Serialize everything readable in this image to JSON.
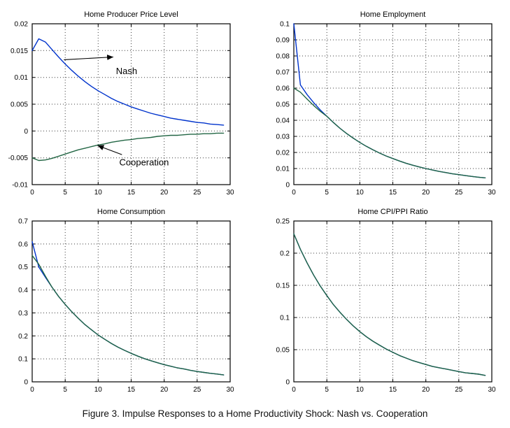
{
  "figure": {
    "caption": "Figure 3. Impulse Responses to a Home Productivity Shock: Nash vs. Cooperation"
  },
  "chart_data": [
    {
      "type": "line",
      "title": "Home Producer Price Level",
      "xlim": [
        0,
        30
      ],
      "ylim": [
        -0.01,
        0.02
      ],
      "xticks": [
        0,
        5,
        10,
        15,
        20,
        25,
        30
      ],
      "xtick_labels": [
        "0",
        "5",
        "10",
        "15",
        "20",
        "25",
        "30"
      ],
      "yticks": [
        -0.01,
        -0.005,
        0,
        0.005,
        0.01,
        0.015,
        0.02
      ],
      "ytick_labels": [
        "-0.01",
        "-0.005",
        "0",
        "0.005",
        "0.01",
        "0.015",
        "0.02"
      ],
      "grid": "on",
      "x": [
        0,
        1,
        2,
        3,
        4,
        5,
        6,
        7,
        8,
        9,
        10,
        11,
        12,
        13,
        14,
        15,
        16,
        17,
        18,
        19,
        20,
        21,
        22,
        23,
        24,
        25,
        26,
        27,
        28,
        29
      ],
      "series": [
        {
          "name": "Nash",
          "color": "#0033cc",
          "values": [
            0.015,
            0.0172,
            0.0166,
            0.0152,
            0.0138,
            0.0125,
            0.0113,
            0.0102,
            0.0092,
            0.0083,
            0.0075,
            0.0068,
            0.0061,
            0.0055,
            0.005,
            0.0045,
            0.0041,
            0.0037,
            0.0033,
            0.003,
            0.0027,
            0.0024,
            0.0022,
            0.002,
            0.0018,
            0.0016,
            0.0015,
            0.0013,
            0.0012,
            0.0011
          ]
        },
        {
          "name": "Cooperation",
          "color": "#226644",
          "values": [
            -0.005,
            -0.0055,
            -0.0054,
            -0.0051,
            -0.0047,
            -0.0043,
            -0.0039,
            -0.0035,
            -0.0032,
            -0.0029,
            -0.0026,
            -0.0024,
            -0.0021,
            -0.0019,
            -0.0017,
            -0.0016,
            -0.0014,
            -0.0013,
            -0.0012,
            -0.001,
            -0.0009,
            -0.0008,
            -0.0008,
            -0.0007,
            -0.0006,
            -0.0006,
            -0.0005,
            -0.0005,
            -0.0004,
            -0.0004
          ]
        }
      ],
      "annotations": [
        {
          "text": "Nash",
          "tx": 12.7,
          "ty": 0.0106,
          "arrow": {
            "x1": 4.8,
            "y1": 0.0133,
            "x2": 12.3,
            "y2": 0.0138
          }
        },
        {
          "text": "Cooperation",
          "tx": 13.2,
          "ty": -0.0064,
          "arrow": {
            "x1": 13.6,
            "y1": -0.0044,
            "x2": 9.9,
            "y2": -0.0027
          }
        }
      ]
    },
    {
      "type": "line",
      "title": "Home Employment",
      "xlim": [
        0,
        30
      ],
      "ylim": [
        0,
        0.1
      ],
      "xticks": [
        0,
        5,
        10,
        15,
        20,
        25,
        30
      ],
      "xtick_labels": [
        "0",
        "5",
        "10",
        "15",
        "20",
        "25",
        "30"
      ],
      "yticks": [
        0,
        0.01,
        0.02,
        0.03,
        0.04,
        0.05,
        0.06,
        0.07,
        0.08,
        0.09,
        0.1
      ],
      "ytick_labels": [
        "0",
        "0.01",
        "0.02",
        "0.03",
        "0.04",
        "0.05",
        "0.06",
        "0.07",
        "0.08",
        "0.09",
        "0.1"
      ],
      "grid": "on",
      "x": [
        0,
        1,
        2,
        3,
        4,
        5,
        6,
        7,
        8,
        9,
        10,
        11,
        12,
        13,
        14,
        15,
        16,
        17,
        18,
        19,
        20,
        21,
        22,
        23,
        24,
        25,
        26,
        27,
        28,
        29
      ],
      "series": [
        {
          "name": "Nash",
          "color": "#0033cc",
          "values": [
            0.1,
            0.062,
            0.056,
            0.051,
            0.0465,
            0.0425,
            0.0386,
            0.035,
            0.0318,
            0.0289,
            0.0262,
            0.0238,
            0.0216,
            0.0196,
            0.0178,
            0.0162,
            0.0147,
            0.0133,
            0.0121,
            0.011,
            0.01,
            0.0091,
            0.0082,
            0.0075,
            0.0068,
            0.0062,
            0.0056,
            0.0051,
            0.0046,
            0.0042
          ]
        },
        {
          "name": "Cooperation",
          "color": "#226644",
          "values": [
            0.06,
            0.0575,
            0.0532,
            0.0492,
            0.0456,
            0.0425,
            0.0386,
            0.035,
            0.0318,
            0.0289,
            0.0262,
            0.0238,
            0.0216,
            0.0196,
            0.0178,
            0.0162,
            0.0147,
            0.0133,
            0.0121,
            0.011,
            0.01,
            0.0091,
            0.0082,
            0.0075,
            0.0068,
            0.0062,
            0.0056,
            0.0051,
            0.0046,
            0.0042
          ]
        }
      ]
    },
    {
      "type": "line",
      "title": "Home Consumption",
      "xlim": [
        0,
        30
      ],
      "ylim": [
        0,
        0.7
      ],
      "xticks": [
        0,
        5,
        10,
        15,
        20,
        25,
        30
      ],
      "xtick_labels": [
        "0",
        "5",
        "10",
        "15",
        "20",
        "25",
        "30"
      ],
      "yticks": [
        0,
        0.1,
        0.2,
        0.3,
        0.4,
        0.5,
        0.6,
        0.7
      ],
      "ytick_labels": [
        "0",
        "0.1",
        "0.2",
        "0.3",
        "0.4",
        "0.5",
        "0.6",
        "0.7"
      ],
      "grid": "on",
      "x": [
        0,
        1,
        2,
        3,
        4,
        5,
        6,
        7,
        8,
        9,
        10,
        11,
        12,
        13,
        14,
        15,
        16,
        17,
        18,
        19,
        20,
        21,
        22,
        23,
        24,
        25,
        26,
        27,
        28,
        29
      ],
      "series": [
        {
          "name": "Nash",
          "color": "#0033cc",
          "values": [
            0.61,
            0.5,
            0.455,
            0.412,
            0.372,
            0.337,
            0.305,
            0.276,
            0.249,
            0.226,
            0.204,
            0.185,
            0.167,
            0.151,
            0.137,
            0.124,
            0.112,
            0.101,
            0.092,
            0.083,
            0.075,
            0.068,
            0.061,
            0.056,
            0.05,
            0.045,
            0.041,
            0.037,
            0.034,
            0.03
          ]
        },
        {
          "name": "Cooperation",
          "color": "#226644",
          "values": [
            0.55,
            0.512,
            0.46,
            0.412,
            0.372,
            0.337,
            0.305,
            0.276,
            0.249,
            0.226,
            0.204,
            0.185,
            0.167,
            0.151,
            0.137,
            0.124,
            0.112,
            0.101,
            0.092,
            0.083,
            0.075,
            0.068,
            0.061,
            0.056,
            0.05,
            0.045,
            0.041,
            0.037,
            0.034,
            0.03
          ]
        }
      ]
    },
    {
      "type": "line",
      "title": "Home CPI/PPI Ratio",
      "xlim": [
        0,
        30
      ],
      "ylim": [
        0,
        0.25
      ],
      "xticks": [
        0,
        5,
        10,
        15,
        20,
        25,
        30
      ],
      "xtick_labels": [
        "0",
        "5",
        "10",
        "15",
        "20",
        "25",
        "30"
      ],
      "yticks": [
        0,
        0.05,
        0.1,
        0.15,
        0.2,
        0.25
      ],
      "ytick_labels": [
        "0",
        "0.05",
        "0.1",
        "0.15",
        "0.2",
        "0.25"
      ],
      "grid": "on",
      "x": [
        0,
        1,
        2,
        3,
        4,
        5,
        6,
        7,
        8,
        9,
        10,
        11,
        12,
        13,
        14,
        15,
        16,
        17,
        18,
        19,
        20,
        21,
        22,
        23,
        24,
        25,
        26,
        27,
        28,
        29
      ],
      "series": [
        {
          "name": "Nash",
          "color": "#0033cc",
          "values": [
            0.23,
            0.206,
            0.185,
            0.166,
            0.149,
            0.134,
            0.12,
            0.108,
            0.097,
            0.087,
            0.078,
            0.07,
            0.063,
            0.057,
            0.051,
            0.046,
            0.041,
            0.037,
            0.033,
            0.03,
            0.027,
            0.024,
            0.022,
            0.02,
            0.018,
            0.016,
            0.014,
            0.013,
            0.012,
            0.01
          ]
        },
        {
          "name": "Cooperation",
          "color": "#226644",
          "values": [
            0.23,
            0.206,
            0.185,
            0.166,
            0.149,
            0.134,
            0.12,
            0.108,
            0.097,
            0.087,
            0.078,
            0.07,
            0.063,
            0.057,
            0.051,
            0.046,
            0.041,
            0.037,
            0.033,
            0.03,
            0.027,
            0.024,
            0.022,
            0.02,
            0.018,
            0.016,
            0.014,
            0.013,
            0.012,
            0.01
          ]
        }
      ]
    }
  ]
}
